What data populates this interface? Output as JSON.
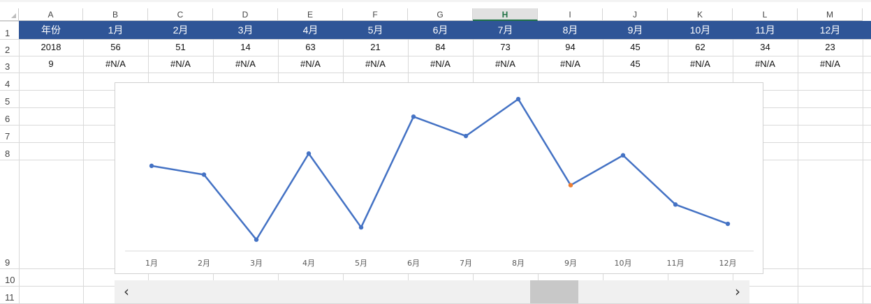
{
  "sheet": {
    "columns": [
      "A",
      "B",
      "C",
      "D",
      "E",
      "F",
      "G",
      "H",
      "I",
      "J",
      "K",
      "L",
      "M"
    ],
    "active_column": "H",
    "rows": [
      "1",
      "2",
      "3",
      "4",
      "5",
      "6",
      "7",
      "8",
      "9",
      "10",
      "11"
    ],
    "header_row": [
      "年份",
      "1月",
      "2月",
      "3月",
      "4月",
      "5月",
      "6月",
      "7月",
      "8月",
      "9月",
      "10月",
      "11月",
      "12月"
    ],
    "data_row": [
      "2018",
      "56",
      "51",
      "14",
      "63",
      "21",
      "84",
      "73",
      "94",
      "45",
      "62",
      "34",
      "23"
    ],
    "lookup_row": [
      "9",
      "#N/A",
      "#N/A",
      "#N/A",
      "#N/A",
      "#N/A",
      "#N/A",
      "#N/A",
      "#N/A",
      "45",
      "#N/A",
      "#N/A",
      "#N/A"
    ]
  },
  "colors": {
    "header_fill": "#2f5597",
    "line": "#4472c4",
    "highlight_marker": "#ed7d31",
    "active_column": "#217346"
  },
  "chart_data": {
    "type": "line",
    "categories": [
      "1月",
      "2月",
      "3月",
      "4月",
      "5月",
      "6月",
      "7月",
      "8月",
      "9月",
      "10月",
      "11月",
      "12月"
    ],
    "series": [
      {
        "values": [
          56,
          51,
          14,
          63,
          21,
          84,
          73,
          94,
          45,
          62,
          34,
          23
        ]
      }
    ],
    "highlight": {
      "category": "9月",
      "value": 45
    },
    "ylim": [
      0,
      100
    ],
    "grid": false,
    "legend": "none",
    "title": "",
    "xlabel": "",
    "ylabel": ""
  },
  "scrollbar": {
    "left_icon": "chevron-left-icon",
    "right_icon": "chevron-right-icon",
    "left_glyph": "‹",
    "right_glyph": "›"
  }
}
